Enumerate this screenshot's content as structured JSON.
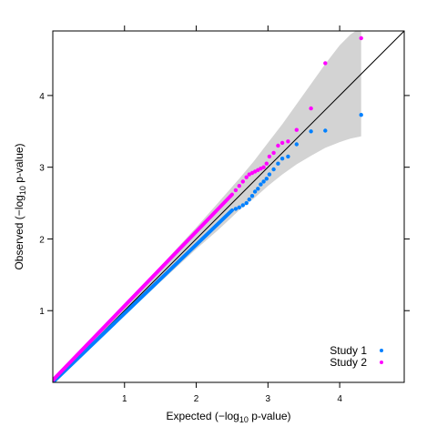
{
  "chart_data": {
    "type": "scatter",
    "xlabel": "Expected (−log",
    "xlabel_sub": "10",
    "xlabel_tail": " p-value)",
    "ylabel": "Observed (−log",
    "ylabel_sub": "10",
    "ylabel_tail": " p-value)",
    "xlim": [
      0,
      4.9
    ],
    "ylim": [
      0,
      4.9
    ],
    "x_ticks": [
      1,
      2,
      3,
      4
    ],
    "y_ticks": [
      1,
      2,
      3,
      4
    ],
    "x_tick_labels": [
      "1",
      "2",
      "3",
      "4"
    ],
    "y_tick_labels": [
      "1",
      "2",
      "3",
      "4"
    ],
    "reference_line": {
      "from": [
        0,
        0
      ],
      "to": [
        4.9,
        4.9
      ]
    },
    "confidence_band": {
      "color": "#d3d3d3",
      "x": [
        0,
        1.0,
        1.5,
        2.0,
        2.3,
        2.6,
        2.8,
        3.0,
        3.2,
        3.4,
        3.6,
        3.8,
        4.0,
        4.15,
        4.3
      ],
      "upper": [
        0.06,
        1.08,
        1.62,
        2.16,
        2.5,
        2.84,
        3.08,
        3.34,
        3.6,
        3.88,
        4.16,
        4.44,
        4.7,
        4.85,
        4.95
      ],
      "lower": [
        0.0,
        0.93,
        1.4,
        1.86,
        2.12,
        2.4,
        2.56,
        2.74,
        2.9,
        3.04,
        3.16,
        3.27,
        3.35,
        3.4,
        3.43
      ]
    },
    "legend": {
      "position": "bottom-right"
    },
    "series": [
      {
        "name": "Study 1",
        "color": "#0080ff",
        "x": [
          2.55,
          2.6,
          2.65,
          2.7,
          2.74,
          2.78,
          2.82,
          2.86,
          2.9,
          2.94,
          2.98,
          3.02,
          3.08,
          3.14,
          3.2,
          3.28,
          3.4,
          3.6,
          3.8,
          4.3
        ],
        "y": [
          2.42,
          2.44,
          2.47,
          2.5,
          2.55,
          2.6,
          2.66,
          2.7,
          2.76,
          2.8,
          2.84,
          2.9,
          2.97,
          3.05,
          3.12,
          3.15,
          3.32,
          3.5,
          3.51,
          3.73
        ],
        "trend": {
          "from": [
            0,
            0
          ],
          "to": [
            2.5,
            2.4
          ]
        }
      },
      {
        "name": "Study 2",
        "color": "#ff00ff",
        "x": [
          2.55,
          2.6,
          2.65,
          2.7,
          2.74,
          2.78,
          2.82,
          2.86,
          2.9,
          2.94,
          2.98,
          3.02,
          3.08,
          3.14,
          3.2,
          3.28,
          3.4,
          3.6,
          3.8,
          4.3
        ],
        "y": [
          2.68,
          2.74,
          2.8,
          2.86,
          2.9,
          2.92,
          2.94,
          2.96,
          2.98,
          3.0,
          3.05,
          3.15,
          3.2,
          3.3,
          3.34,
          3.36,
          3.52,
          3.82,
          4.45,
          4.8
        ],
        "trend": {
          "from": [
            0,
            0.03
          ],
          "to": [
            2.5,
            2.62
          ]
        }
      }
    ]
  }
}
